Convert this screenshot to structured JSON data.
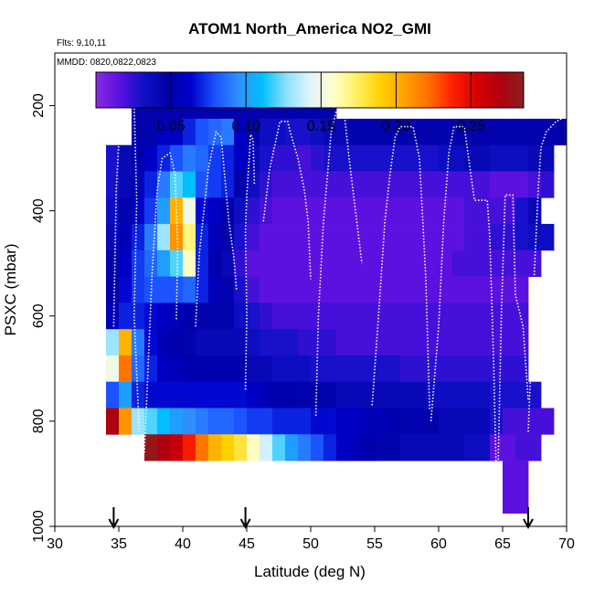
{
  "chart_data": {
    "type": "heatmap",
    "title": "ATOM1 North_America NO2_GMI",
    "annotations": {
      "flights": "Flts: 9,10,11",
      "dates": "MMDD: 0820,0822,0823"
    },
    "xlabel": "Latitude (deg N)",
    "ylabel": "PSXC (mbar)",
    "xlim": [
      30,
      70
    ],
    "ylim": [
      1000,
      100
    ],
    "x_ticks": [
      "30",
      "35",
      "40",
      "45",
      "50",
      "55",
      "60",
      "65",
      "70"
    ],
    "y_ticks": [
      "200",
      "400",
      "600",
      "800",
      "1000"
    ],
    "colorbar": {
      "range": [
        0,
        0.285
      ],
      "ticks": [
        "0.05",
        "0.10",
        "0.15",
        "0.20",
        "0.25"
      ],
      "colors": [
        "#8a2be2",
        "#5a10e0",
        "#1010c8",
        "#0000a8",
        "#0000cc",
        "#1a50ff",
        "#2f8fff",
        "#00c0ff",
        "#8ae0ff",
        "#dff4ff",
        "#ffffcc",
        "#fff060",
        "#ffd000",
        "#ffa000",
        "#ff7000",
        "#ff2000",
        "#d80000",
        "#b00010",
        "#8a2020"
      ]
    },
    "profile_arrows_lat": [
      34.6,
      44.9,
      67.0
    ],
    "grid_x": [
      34,
      35,
      36,
      37,
      38,
      39,
      40,
      41,
      42,
      43,
      44,
      45,
      46,
      47,
      48,
      49,
      50,
      51,
      52,
      53,
      54,
      55,
      56,
      57,
      58,
      59,
      60,
      61,
      62,
      63,
      64,
      65,
      66,
      67,
      68,
      69,
      70
    ],
    "grid_y": [
      175,
      225,
      275,
      325,
      375,
      425,
      475,
      525,
      575,
      625,
      675,
      725,
      775,
      825,
      875,
      925,
      975
    ],
    "values": [
      [
        null,
        null,
        0.045,
        0.045,
        0.045,
        0.045,
        0.045,
        0.045,
        0.045,
        0.045,
        0.045,
        0.045,
        0.045,
        0.045,
        0.045,
        0.045,
        0.045,
        0.045,
        null,
        null,
        null,
        null,
        null,
        null,
        null,
        null,
        null,
        null,
        null,
        null,
        null,
        null,
        null,
        null,
        null,
        null
      ],
      [
        null,
        null,
        0.045,
        0.045,
        0.06,
        0.06,
        0.07,
        0.08,
        0.085,
        0.09,
        0.06,
        0.045,
        0.035,
        0.035,
        0.03,
        0.03,
        0.035,
        0.04,
        0.04,
        0.045,
        0.045,
        0.045,
        0.045,
        0.045,
        0.045,
        0.045,
        0.045,
        0.045,
        0.045,
        0.045,
        0.045,
        0.045,
        0.045,
        0.045,
        0.045,
        0.045
      ],
      [
        0.03,
        0.04,
        0.05,
        0.06,
        0.07,
        0.08,
        0.09,
        0.085,
        0.075,
        0.07,
        0.06,
        0.04,
        0.03,
        0.025,
        0.025,
        0.02,
        0.025,
        0.03,
        0.03,
        0.03,
        0.03,
        0.03,
        0.03,
        0.03,
        0.03,
        0.03,
        0.035,
        0.035,
        0.04,
        0.04,
        0.035,
        0.035,
        0.035,
        0.04,
        0.04,
        null
      ],
      [
        0.03,
        0.04,
        0.055,
        0.07,
        0.09,
        0.12,
        0.11,
        0.08,
        0.075,
        0.07,
        0.045,
        0.035,
        0.025,
        0.02,
        0.02,
        0.02,
        0.02,
        0.02,
        0.02,
        0.02,
        0.02,
        0.02,
        0.02,
        0.02,
        0.02,
        0.02,
        0.02,
        0.02,
        0.02,
        0.02,
        0.015,
        0.015,
        0.015,
        0.02,
        0.025,
        null
      ],
      [
        0.035,
        0.045,
        0.06,
        0.075,
        0.1,
        0.2,
        0.15,
        0.065,
        0.06,
        0.05,
        0.035,
        0.025,
        0.02,
        0.015,
        0.015,
        0.015,
        0.015,
        0.015,
        0.015,
        0.015,
        0.015,
        0.015,
        0.015,
        0.015,
        0.015,
        0.015,
        0.015,
        0.015,
        0.02,
        0.02,
        0.02,
        0.02,
        0.03,
        0.04,
        null,
        null
      ],
      [
        0.04,
        0.055,
        0.07,
        0.09,
        0.13,
        0.21,
        0.17,
        0.07,
        0.055,
        0.045,
        0.03,
        0.02,
        0.015,
        0.015,
        0.015,
        0.015,
        0.015,
        0.015,
        0.015,
        0.015,
        0.015,
        0.015,
        0.015,
        0.015,
        0.015,
        0.015,
        0.015,
        0.015,
        0.02,
        0.02,
        0.025,
        0.025,
        0.03,
        0.035,
        0.035,
        null
      ],
      [
        0.045,
        0.06,
        0.075,
        0.085,
        0.1,
        0.12,
        0.16,
        0.07,
        0.05,
        0.04,
        0.025,
        0.015,
        0.015,
        0.015,
        0.015,
        0.015,
        0.015,
        0.015,
        0.015,
        0.015,
        0.015,
        0.015,
        0.015,
        0.015,
        0.015,
        0.015,
        0.015,
        0.02,
        0.02,
        0.02,
        0.02,
        0.02,
        0.02,
        0.02,
        null,
        null
      ],
      [
        0.05,
        0.065,
        0.075,
        0.08,
        0.08,
        0.08,
        0.085,
        0.07,
        0.055,
        0.045,
        0.03,
        0.02,
        0.015,
        0.015,
        0.015,
        0.015,
        0.015,
        0.015,
        0.015,
        0.015,
        0.015,
        0.015,
        0.015,
        0.015,
        0.015,
        0.015,
        0.015,
        0.015,
        0.015,
        0.015,
        0.015,
        0.015,
        0.015,
        null,
        null,
        null
      ],
      [
        0.055,
        0.07,
        0.07,
        0.065,
        0.06,
        0.055,
        0.05,
        0.045,
        0.045,
        0.045,
        0.035,
        0.03,
        0.025,
        0.02,
        0.02,
        0.02,
        0.02,
        0.02,
        0.02,
        0.02,
        0.02,
        0.02,
        0.02,
        0.02,
        0.02,
        0.02,
        0.02,
        0.02,
        0.02,
        0.02,
        0.02,
        0.02,
        0.02,
        null,
        null,
        null
      ],
      [
        0.13,
        0.2,
        0.09,
        0.065,
        0.055,
        0.05,
        0.045,
        0.04,
        0.04,
        0.04,
        0.04,
        0.035,
        0.03,
        0.03,
        0.03,
        0.025,
        0.025,
        0.025,
        0.02,
        0.02,
        0.02,
        0.02,
        0.02,
        0.02,
        0.02,
        0.02,
        0.02,
        0.02,
        0.02,
        0.02,
        0.02,
        0.02,
        0.02,
        null,
        null,
        null
      ],
      [
        0.15,
        0.22,
        0.085,
        0.07,
        0.06,
        0.055,
        0.05,
        0.05,
        0.05,
        0.05,
        0.05,
        0.04,
        0.04,
        0.035,
        0.035,
        0.035,
        0.03,
        0.03,
        0.03,
        0.03,
        0.03,
        0.03,
        0.03,
        0.025,
        0.025,
        0.025,
        0.025,
        0.025,
        0.025,
        0.025,
        0.025,
        0.025,
        0.025,
        null,
        null,
        null
      ],
      [
        0.08,
        0.1,
        0.07,
        0.065,
        0.065,
        0.065,
        0.065,
        0.065,
        0.065,
        0.065,
        0.065,
        0.06,
        0.055,
        0.05,
        0.05,
        0.045,
        0.045,
        0.045,
        0.04,
        0.04,
        0.04,
        0.04,
        0.04,
        0.04,
        0.04,
        0.035,
        0.035,
        0.035,
        0.035,
        0.035,
        0.03,
        0.03,
        0.03,
        0.03,
        null,
        null
      ],
      [
        0.27,
        0.21,
        0.13,
        0.12,
        0.11,
        0.1,
        0.095,
        0.09,
        0.085,
        0.085,
        0.08,
        0.075,
        0.075,
        0.07,
        0.07,
        0.07,
        0.065,
        0.065,
        0.06,
        0.06,
        0.055,
        0.055,
        0.05,
        0.045,
        0.045,
        0.045,
        0.04,
        0.04,
        0.04,
        0.04,
        0.03,
        0.02,
        0.02,
        0.02,
        0.02,
        null
      ],
      [
        null,
        null,
        null,
        0.28,
        0.27,
        0.26,
        0.24,
        0.22,
        0.2,
        0.19,
        0.18,
        0.16,
        0.14,
        0.12,
        0.1,
        0.09,
        0.08,
        0.07,
        0.06,
        0.055,
        0.05,
        0.045,
        0.045,
        0.04,
        0.04,
        0.04,
        0.04,
        0.04,
        0.035,
        0.035,
        0.015,
        0.015,
        0.02,
        0.02,
        null,
        null
      ],
      [
        null,
        null,
        null,
        null,
        null,
        null,
        null,
        null,
        null,
        null,
        null,
        null,
        null,
        null,
        null,
        null,
        null,
        null,
        null,
        null,
        null,
        null,
        null,
        null,
        null,
        null,
        null,
        null,
        null,
        null,
        null,
        0.015,
        0.015,
        null,
        null,
        null
      ],
      [
        null,
        null,
        null,
        null,
        null,
        null,
        null,
        null,
        null,
        null,
        null,
        null,
        null,
        null,
        null,
        null,
        null,
        null,
        null,
        null,
        null,
        null,
        null,
        null,
        null,
        null,
        null,
        null,
        null,
        null,
        null,
        0.015,
        0.015,
        null,
        null,
        null
      ]
    ],
    "flight_tracks": [
      [
        [
          34.6,
          620
        ],
        [
          34.8,
          360
        ],
        [
          35.0,
          270
        ],
        [
          35.2,
          195
        ],
        [
          36.0,
          190
        ],
        [
          36.2,
          200
        ],
        [
          36.4,
          380
        ],
        [
          36.2,
          600
        ],
        [
          36.6,
          820
        ]
      ],
      [
        [
          37.0,
          860
        ],
        [
          37.6,
          520
        ],
        [
          38.0,
          360
        ],
        [
          38.4,
          300
        ],
        [
          39.0,
          290
        ],
        [
          39.4,
          330
        ],
        [
          39.6,
          470
        ],
        [
          39.5,
          610
        ]
      ],
      [
        [
          41.0,
          620
        ],
        [
          41.3,
          480
        ],
        [
          42.0,
          320
        ],
        [
          42.6,
          250
        ],
        [
          43.0,
          260
        ],
        [
          43.6,
          420
        ],
        [
          44.0,
          490
        ],
        [
          44.2,
          550
        ]
      ],
      [
        [
          44.9,
          740
        ],
        [
          45.0,
          600
        ],
        [
          44.9,
          440
        ],
        [
          45.0,
          370
        ],
        [
          45.2,
          300
        ],
        [
          45.3,
          255
        ],
        [
          45.5,
          265
        ],
        [
          45.6,
          350
        ]
      ],
      [
        [
          46.3,
          420
        ],
        [
          46.8,
          320
        ],
        [
          47.6,
          230
        ],
        [
          48.2,
          230
        ],
        [
          48.4,
          250
        ],
        [
          49.0,
          300
        ],
        [
          49.5,
          360
        ],
        [
          49.8,
          420
        ],
        [
          50.0,
          530
        ]
      ],
      [
        [
          50.4,
          790
        ],
        [
          50.6,
          600
        ],
        [
          51.0,
          420
        ],
        [
          51.6,
          250
        ],
        [
          52.0,
          210
        ],
        [
          52.6,
          210
        ],
        [
          53.0,
          300
        ],
        [
          53.6,
          420
        ],
        [
          54.0,
          500
        ]
      ],
      [
        [
          54.8,
          770
        ],
        [
          55.3,
          600
        ],
        [
          55.8,
          420
        ],
        [
          56.2,
          330
        ],
        [
          56.6,
          260
        ],
        [
          57.0,
          240
        ],
        [
          58.0,
          240
        ],
        [
          58.5,
          300
        ],
        [
          59.0,
          530
        ],
        [
          59.3,
          780
        ]
      ],
      [
        [
          59.4,
          800
        ],
        [
          60.0,
          620
        ],
        [
          60.4,
          420
        ],
        [
          60.8,
          290
        ],
        [
          61.2,
          240
        ],
        [
          62.0,
          240
        ],
        [
          62.4,
          310
        ],
        [
          62.8,
          380
        ],
        [
          63.8,
          380
        ],
        [
          64.0,
          450
        ],
        [
          64.3,
          690
        ],
        [
          64.5,
          900
        ]
      ],
      [
        [
          64.6,
          940
        ],
        [
          64.9,
          600
        ],
        [
          65.2,
          370
        ],
        [
          65.8,
          370
        ],
        [
          66.0,
          560
        ],
        [
          66.6,
          620
        ],
        [
          67.0,
          760
        ]
      ],
      [
        [
          67.0,
          820
        ],
        [
          67.2,
          700
        ],
        [
          67.4,
          560
        ],
        [
          67.8,
          350
        ],
        [
          68.0,
          280
        ],
        [
          68.4,
          250
        ],
        [
          69.2,
          230
        ],
        [
          70.0,
          220
        ]
      ]
    ]
  }
}
